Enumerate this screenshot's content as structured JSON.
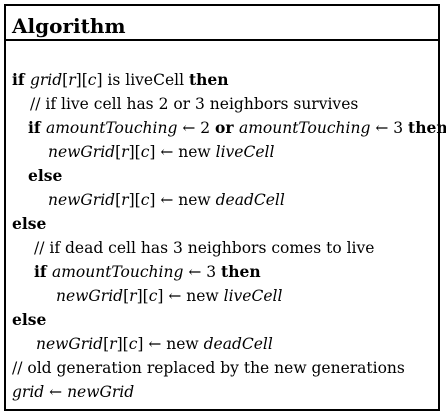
{
  "title": "Algorithm",
  "lines": [
    {
      "indent": 6,
      "segments": [
        {
          "t": "if ",
          "s": "kw"
        },
        {
          "t": "grid",
          "s": "it"
        },
        {
          "t": "[",
          "s": "n"
        },
        {
          "t": "r",
          "s": "it"
        },
        {
          "t": "][",
          "s": "n"
        },
        {
          "t": "c",
          "s": "it"
        },
        {
          "t": "] is liveCell ",
          "s": "n"
        },
        {
          "t": "then",
          "s": "kw"
        }
      ]
    },
    {
      "indent": 24,
      "segments": [
        {
          "t": "// if live cell has 2 or 3 neighbors survives",
          "s": "n"
        }
      ]
    },
    {
      "indent": 22,
      "segments": [
        {
          "t": "if ",
          "s": "kw"
        },
        {
          "t": "amountTouching",
          "s": "it"
        },
        {
          "t": " ← 2 ",
          "s": "n"
        },
        {
          "t": "or ",
          "s": "kw"
        },
        {
          "t": "amountTouching",
          "s": "it"
        },
        {
          "t": " ← 3 ",
          "s": "n"
        },
        {
          "t": "then",
          "s": "kw"
        }
      ]
    },
    {
      "indent": 42,
      "segments": [
        {
          "t": "newGrid",
          "s": "it"
        },
        {
          "t": "[",
          "s": "n"
        },
        {
          "t": "r",
          "s": "it"
        },
        {
          "t": "][",
          "s": "n"
        },
        {
          "t": "c",
          "s": "it"
        },
        {
          "t": "] ← new ",
          "s": "n"
        },
        {
          "t": "liveCell",
          "s": "it"
        }
      ]
    },
    {
      "indent": 22,
      "segments": [
        {
          "t": "else",
          "s": "kw"
        }
      ]
    },
    {
      "indent": 42,
      "segments": [
        {
          "t": "newGrid",
          "s": "it"
        },
        {
          "t": "[",
          "s": "n"
        },
        {
          "t": "r",
          "s": "it"
        },
        {
          "t": "][",
          "s": "n"
        },
        {
          "t": "c",
          "s": "it"
        },
        {
          "t": "] ← new ",
          "s": "n"
        },
        {
          "t": "deadCell",
          "s": "it"
        }
      ]
    },
    {
      "indent": 6,
      "segments": [
        {
          "t": "else",
          "s": "kw"
        }
      ]
    },
    {
      "indent": 28,
      "segments": [
        {
          "t": "// if dead cell has 3 neighbors comes to live",
          "s": "n"
        }
      ]
    },
    {
      "indent": 28,
      "segments": [
        {
          "t": "if ",
          "s": "kw"
        },
        {
          "t": "amountTouching",
          "s": "it"
        },
        {
          "t": " ← 3 ",
          "s": "n"
        },
        {
          "t": "then",
          "s": "kw"
        }
      ]
    },
    {
      "indent": 50,
      "segments": [
        {
          "t": "newGrid",
          "s": "it"
        },
        {
          "t": "[",
          "s": "n"
        },
        {
          "t": "r",
          "s": "it"
        },
        {
          "t": "][",
          "s": "n"
        },
        {
          "t": "c",
          "s": "it"
        },
        {
          "t": "] ← new ",
          "s": "n"
        },
        {
          "t": "liveCell",
          "s": "it"
        }
      ]
    },
    {
      "indent": 6,
      "segments": [
        {
          "t": "else",
          "s": "kw"
        }
      ]
    },
    {
      "indent": 30,
      "segments": [
        {
          "t": "newGrid",
          "s": "it"
        },
        {
          "t": "[",
          "s": "n"
        },
        {
          "t": "r",
          "s": "it"
        },
        {
          "t": "][",
          "s": "n"
        },
        {
          "t": "c",
          "s": "it"
        },
        {
          "t": "] ← new ",
          "s": "n"
        },
        {
          "t": "deadCell",
          "s": "it"
        }
      ]
    },
    {
      "indent": 6,
      "segments": [
        {
          "t": "// old generation replaced by the new generations",
          "s": "n"
        }
      ]
    },
    {
      "indent": 6,
      "segments": [
        {
          "t": "grid",
          "s": "it"
        },
        {
          "t": " ← ",
          "s": "n"
        },
        {
          "t": "newGrid",
          "s": "it"
        }
      ]
    }
  ]
}
